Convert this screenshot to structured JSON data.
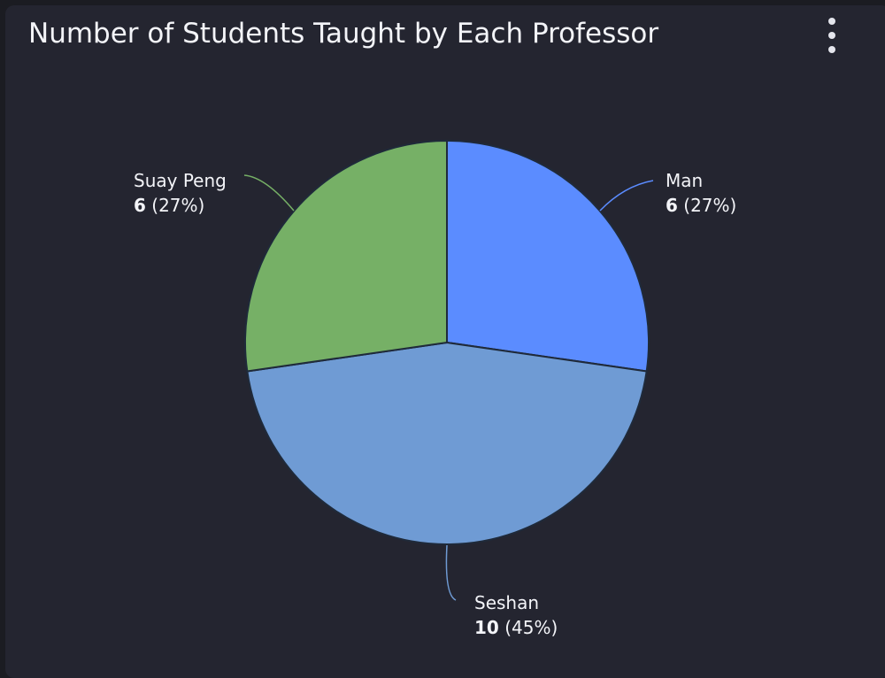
{
  "header": {
    "title": "Number of Students Taught by Each Professor",
    "menu_icon": "more-vertical-icon"
  },
  "chart_data": {
    "type": "pie",
    "title": "Number of Students Taught by Each Professor",
    "categories": [
      "Man",
      "Seshan",
      "Suay Peng"
    ],
    "values": [
      6,
      10,
      6
    ],
    "percent_labels": [
      "27%",
      "45%",
      "27%"
    ],
    "colors": [
      "#5b8cff",
      "#6f9bd4",
      "#76b066"
    ],
    "legend": "none",
    "label_placement": "outside"
  },
  "colors": {
    "background": "#242530",
    "text": "#f3f4f8",
    "slice_border": "#1f2a3a"
  }
}
